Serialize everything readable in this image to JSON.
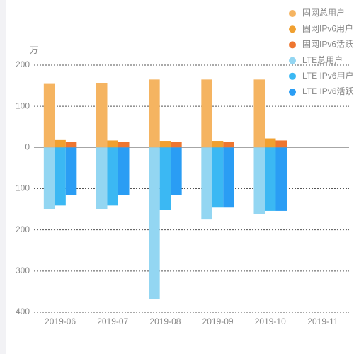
{
  "chart_data": {
    "type": "bar",
    "unit": "万",
    "categories": [
      "2019-06",
      "2019-07",
      "2019-08",
      "2019-09",
      "2019-10",
      "2019-11"
    ],
    "series": [
      {
        "name": "固网总用户",
        "color": "#f5b461",
        "values": [
          156,
          157,
          165,
          165,
          165,
          null
        ]
      },
      {
        "name": "固网IPv6用户",
        "color": "#f0a030",
        "values": [
          18,
          17,
          16,
          16,
          22,
          null
        ]
      },
      {
        "name": "固网IPv6活跃",
        "color": "#ee7630",
        "values": [
          14,
          13,
          13,
          13,
          17,
          null
        ]
      },
      {
        "name": "LTE总用户",
        "color": "#93d6f2",
        "values": [
          -149,
          -149,
          -369,
          -175,
          -161,
          null
        ]
      },
      {
        "name": "LTE IPv6用户",
        "color": "#3bb8f3",
        "values": [
          -141,
          -141,
          -151,
          -146,
          -154,
          null
        ]
      },
      {
        "name": "LTE IPv6活跃",
        "color": "#2a9df4",
        "values": [
          -115,
          -115,
          -115,
          -146,
          -154,
          null
        ]
      }
    ],
    "ylim": [
      -400,
      200
    ],
    "yticks": [
      {
        "value": -400,
        "label": "400"
      },
      {
        "value": -300,
        "label": "300"
      },
      {
        "value": -200,
        "label": "200"
      },
      {
        "value": -100,
        "label": "100"
      },
      0,
      100,
      200
    ],
    "grid": true,
    "legend": "top-right"
  }
}
